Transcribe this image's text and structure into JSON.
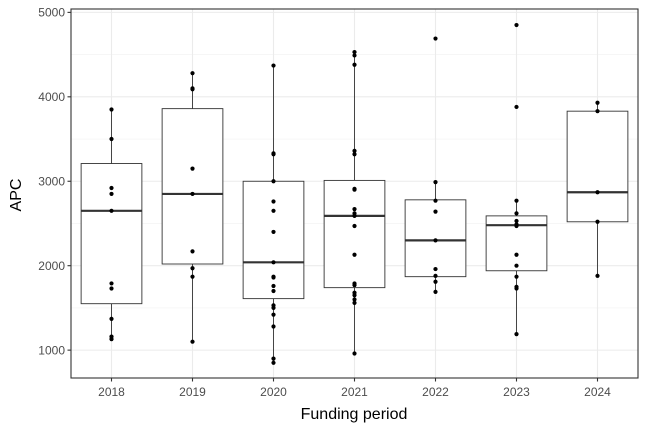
{
  "chart_data": {
    "type": "boxplot",
    "title": "",
    "xlabel": "Funding period",
    "ylabel": "APC",
    "categories": [
      "2018",
      "2019",
      "2020",
      "2021",
      "2022",
      "2023",
      "2024"
    ],
    "yticks": [
      1000,
      2000,
      3000,
      4000,
      5000
    ],
    "ylim": [
      670,
      5040
    ],
    "grid": true,
    "legend": "none",
    "boxes": [
      {
        "category": "2018",
        "q1": 1550,
        "median": 2650,
        "q3": 3210,
        "whisker_low": 1130,
        "whisker_high": 3850
      },
      {
        "category": "2019",
        "q1": 2020,
        "median": 2850,
        "q3": 3860,
        "whisker_low": 1100,
        "whisker_high": 4280
      },
      {
        "category": "2020",
        "q1": 1610,
        "median": 2040,
        "q3": 3000,
        "whisker_low": 850,
        "whisker_high": 4370
      },
      {
        "category": "2021",
        "q1": 1740,
        "median": 2590,
        "q3": 3010,
        "whisker_low": 960,
        "whisker_high": 4530
      },
      {
        "category": "2022",
        "q1": 1870,
        "median": 2300,
        "q3": 2780,
        "whisker_low": 1690,
        "whisker_high": 2990
      },
      {
        "category": "2023",
        "q1": 1940,
        "median": 2480,
        "q3": 2590,
        "whisker_low": 1190,
        "whisker_high": 2770
      },
      {
        "category": "2024",
        "q1": 2520,
        "median": 2870,
        "q3": 3830,
        "whisker_low": 1880,
        "whisker_high": 3930
      }
    ],
    "points": [
      {
        "category": "2018",
        "values": [
          3850,
          3500,
          2920,
          2850,
          2650,
          1790,
          1730,
          1370,
          1160,
          1130
        ]
      },
      {
        "category": "2019",
        "values": [
          4280,
          4100,
          4090,
          3150,
          2850,
          2170,
          1970,
          1870,
          1100
        ]
      },
      {
        "category": "2020",
        "values": [
          4370,
          3330,
          3320,
          3000,
          2760,
          2650,
          2400,
          2040,
          1870,
          1860,
          1760,
          1700,
          1530,
          1500,
          1420,
          1280,
          900,
          850
        ]
      },
      {
        "category": "2021",
        "values": [
          4530,
          4490,
          4380,
          3360,
          3320,
          2910,
          2900,
          2670,
          2620,
          2590,
          2470,
          2130,
          1790,
          1770,
          1680,
          1650,
          1600,
          1560,
          960
        ]
      },
      {
        "category": "2022",
        "values": [
          4690,
          2990,
          2770,
          2640,
          2300,
          1960,
          1880,
          1810,
          1690
        ]
      },
      {
        "category": "2023",
        "values": [
          4850,
          3880,
          2770,
          2620,
          2530,
          2490,
          2470,
          2130,
          2000,
          1870,
          1750,
          1730,
          1190
        ]
      },
      {
        "category": "2024",
        "values": [
          3930,
          3830,
          2870,
          2520,
          1880
        ]
      }
    ]
  }
}
